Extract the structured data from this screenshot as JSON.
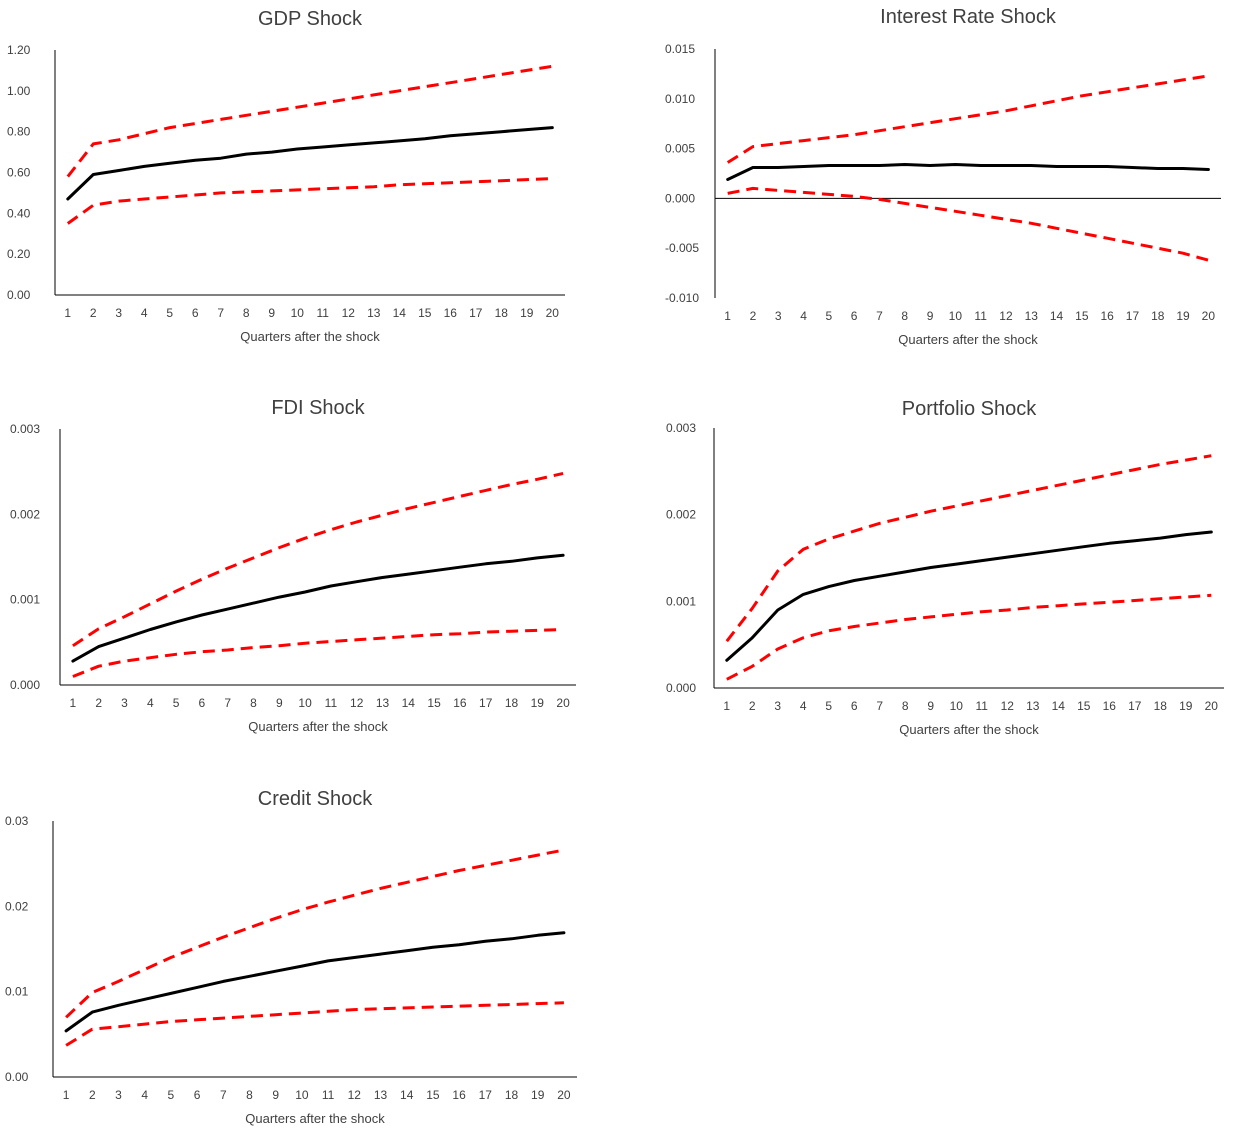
{
  "chart_data": [
    {
      "type": "line",
      "title": "GDP Shock",
      "xlabel": "Quarters after the shock",
      "ylabel": "",
      "x": [
        1,
        2,
        3,
        4,
        5,
        6,
        7,
        8,
        9,
        10,
        11,
        12,
        13,
        14,
        15,
        16,
        17,
        18,
        19,
        20
      ],
      "ylim": [
        0,
        1.2
      ],
      "yticks": [
        "0.00",
        "0.20",
        "0.40",
        "0.60",
        "0.80",
        "1.00",
        "1.20"
      ],
      "series": [
        {
          "values": [
            0.47,
            0.59,
            0.61,
            0.63,
            0.645,
            0.66,
            0.67,
            0.69,
            0.7,
            0.715,
            0.725,
            0.735,
            0.745,
            0.755,
            0.765,
            0.78,
            0.79,
            0.8,
            0.81,
            0.82
          ]
        },
        {
          "values": [
            0.58,
            0.74,
            0.76,
            0.79,
            0.82,
            0.84,
            0.86,
            0.88,
            0.9,
            0.92,
            0.94,
            0.96,
            0.98,
            1.0,
            1.02,
            1.04,
            1.06,
            1.08,
            1.1,
            1.12
          ]
        },
        {
          "values": [
            0.35,
            0.44,
            0.46,
            0.47,
            0.48,
            0.49,
            0.5,
            0.505,
            0.51,
            0.515,
            0.52,
            0.525,
            0.53,
            0.54,
            0.545,
            0.55,
            0.555,
            0.56,
            0.565,
            0.57
          ]
        }
      ],
      "colors": {
        "irf": "#000000",
        "bands": "#ff0000"
      }
    },
    {
      "type": "line",
      "title": "Interest Rate Shock",
      "xlabel": "Quarters after the shock",
      "ylabel": "",
      "x": [
        1,
        2,
        3,
        4,
        5,
        6,
        7,
        8,
        9,
        10,
        11,
        12,
        13,
        14,
        15,
        16,
        17,
        18,
        19,
        20
      ],
      "ylim": [
        -0.01,
        0.015
      ],
      "yticks": [
        "-0.010",
        "-0.005",
        "0.000",
        "0.005",
        "0.010",
        "0.015"
      ],
      "series": [
        {
          "values": [
            0.0019,
            0.0031,
            0.0031,
            0.0032,
            0.0033,
            0.0033,
            0.0033,
            0.0034,
            0.0033,
            0.0034,
            0.0033,
            0.0033,
            0.0033,
            0.0032,
            0.0032,
            0.0032,
            0.0031,
            0.003,
            0.003,
            0.0029
          ]
        },
        {
          "values": [
            0.0036,
            0.0052,
            0.0055,
            0.0058,
            0.0061,
            0.0064,
            0.0068,
            0.0072,
            0.0076,
            0.008,
            0.0084,
            0.0088,
            0.0093,
            0.0098,
            0.0103,
            0.0107,
            0.0111,
            0.0115,
            0.0119,
            0.0123
          ]
        },
        {
          "values": [
            0.0005,
            0.001,
            0.0008,
            0.0006,
            0.0004,
            0.0002,
            -0.0001,
            -0.0005,
            -0.0009,
            -0.0013,
            -0.0017,
            -0.0021,
            -0.0025,
            -0.003,
            -0.0035,
            -0.004,
            -0.0045,
            -0.005,
            -0.0055,
            -0.0062
          ]
        }
      ],
      "colors": {
        "irf": "#000000",
        "bands": "#ff0000"
      }
    },
    {
      "type": "line",
      "title": "FDI Shock",
      "xlabel": "Quarters after the shock",
      "ylabel": "",
      "x": [
        1,
        2,
        3,
        4,
        5,
        6,
        7,
        8,
        9,
        10,
        11,
        12,
        13,
        14,
        15,
        16,
        17,
        18,
        19,
        20
      ],
      "ylim": [
        0,
        0.003
      ],
      "yticks": [
        "0.000",
        "0.001",
        "0.002",
        "0.003"
      ],
      "series": [
        {
          "values": [
            0.00028,
            0.00045,
            0.00055,
            0.00065,
            0.00074,
            0.00082,
            0.00089,
            0.00096,
            0.00103,
            0.00109,
            0.00116,
            0.00121,
            0.00126,
            0.0013,
            0.00134,
            0.00138,
            0.00142,
            0.00145,
            0.00149,
            0.00152
          ]
        },
        {
          "values": [
            0.00046,
            0.00066,
            0.0008,
            0.00095,
            0.0011,
            0.00124,
            0.00137,
            0.00149,
            0.00161,
            0.00172,
            0.00182,
            0.00191,
            0.00199,
            0.00207,
            0.00214,
            0.00221,
            0.00228,
            0.00235,
            0.00241,
            0.00248
          ]
        },
        {
          "values": [
            0.0001,
            0.00022,
            0.00028,
            0.00032,
            0.00036,
            0.00039,
            0.00041,
            0.00044,
            0.00046,
            0.00049,
            0.00051,
            0.00053,
            0.00055,
            0.00057,
            0.00059,
            0.0006,
            0.00062,
            0.00063,
            0.00064,
            0.00065
          ]
        }
      ],
      "colors": {
        "irf": "#000000",
        "bands": "#ff0000"
      }
    },
    {
      "type": "line",
      "title": "Portfolio Shock",
      "xlabel": "Quarters after the shock",
      "ylabel": "",
      "x": [
        1,
        2,
        3,
        4,
        5,
        6,
        7,
        8,
        9,
        10,
        11,
        12,
        13,
        14,
        15,
        16,
        17,
        18,
        19,
        20
      ],
      "ylim": [
        0,
        0.003
      ],
      "yticks": [
        "0.000",
        "0.001",
        "0.002",
        "0.003"
      ],
      "series": [
        {
          "values": [
            0.00032,
            0.00058,
            0.0009,
            0.00108,
            0.00117,
            0.00124,
            0.00129,
            0.00134,
            0.00139,
            0.00143,
            0.00147,
            0.00151,
            0.00155,
            0.00159,
            0.00163,
            0.00167,
            0.0017,
            0.00173,
            0.00177,
            0.0018
          ]
        },
        {
          "values": [
            0.00054,
            0.00092,
            0.00135,
            0.0016,
            0.00172,
            0.00181,
            0.0019,
            0.00197,
            0.00204,
            0.0021,
            0.00216,
            0.00222,
            0.00228,
            0.00234,
            0.0024,
            0.00246,
            0.00252,
            0.00258,
            0.00263,
            0.00268
          ]
        },
        {
          "values": [
            0.0001,
            0.00025,
            0.00045,
            0.00058,
            0.00066,
            0.00071,
            0.00075,
            0.00079,
            0.00082,
            0.00085,
            0.00088,
            0.0009,
            0.00093,
            0.00095,
            0.00097,
            0.00099,
            0.00101,
            0.00103,
            0.00105,
            0.00107
          ]
        }
      ],
      "colors": {
        "irf": "#000000",
        "bands": "#ff0000"
      }
    },
    {
      "type": "line",
      "title": "Credit Shock",
      "xlabel": "Quarters after the shock",
      "ylabel": "",
      "x": [
        1,
        2,
        3,
        4,
        5,
        6,
        7,
        8,
        9,
        10,
        11,
        12,
        13,
        14,
        15,
        16,
        17,
        18,
        19,
        20
      ],
      "ylim": [
        0,
        0.03
      ],
      "yticks": [
        "0.00",
        "0.01",
        "0.02",
        "0.03"
      ],
      "series": [
        {
          "values": [
            0.0054,
            0.0076,
            0.0084,
            0.0091,
            0.0098,
            0.0105,
            0.0112,
            0.0118,
            0.0124,
            0.013,
            0.0136,
            0.014,
            0.0144,
            0.0148,
            0.0152,
            0.0155,
            0.0159,
            0.0162,
            0.0166,
            0.0169
          ]
        },
        {
          "values": [
            0.007,
            0.0099,
            0.0112,
            0.0126,
            0.014,
            0.0152,
            0.0164,
            0.0175,
            0.0186,
            0.0196,
            0.0205,
            0.0213,
            0.0221,
            0.0228,
            0.0235,
            0.0242,
            0.0248,
            0.0254,
            0.026,
            0.0266
          ]
        },
        {
          "values": [
            0.0037,
            0.0056,
            0.0059,
            0.0062,
            0.0065,
            0.0067,
            0.0069,
            0.0071,
            0.0073,
            0.0075,
            0.0077,
            0.0079,
            0.008,
            0.0081,
            0.0082,
            0.0083,
            0.0084,
            0.0085,
            0.0086,
            0.0087
          ]
        }
      ],
      "colors": {
        "irf": "#000000",
        "bands": "#ff0000"
      }
    }
  ]
}
